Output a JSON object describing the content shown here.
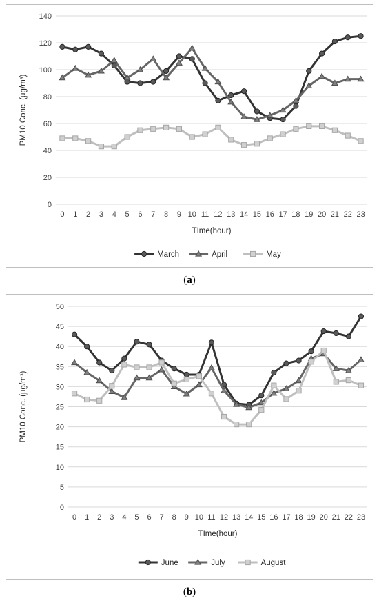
{
  "captions": {
    "a": "a",
    "b": "b"
  },
  "chart_data": [
    {
      "type": "line",
      "ylabel": "PM10 Conc. (μg/m³)",
      "xlabel": "TIme(hour)",
      "ylim": [
        0,
        140
      ],
      "ytick_step": 20,
      "categories": [
        "0",
        "1",
        "2",
        "3",
        "4",
        "5",
        "6",
        "7",
        "8",
        "9",
        "10",
        "11",
        "12",
        "13",
        "14",
        "15",
        "16",
        "17",
        "18",
        "19",
        "20",
        "21",
        "22",
        "23"
      ],
      "legend_position": "bottom",
      "series": [
        {
          "name": "March",
          "marker": "circle",
          "color": "#333333",
          "values": [
            117,
            115,
            117,
            112,
            103,
            91,
            90,
            91,
            99,
            110,
            108,
            90,
            77,
            81,
            84,
            69,
            64,
            63,
            73,
            99,
            112,
            121,
            124,
            125
          ]
        },
        {
          "name": "April",
          "marker": "triangle",
          "color": "#666666",
          "values": [
            94,
            101,
            96,
            99,
            107,
            94,
            100,
            108,
            94,
            105,
            116,
            101,
            91,
            76,
            65,
            63,
            66,
            70,
            77,
            88,
            95,
            90,
            93,
            93
          ]
        },
        {
          "name": "May",
          "marker": "square",
          "color": "#bfbfbf",
          "values": [
            49,
            49,
            47,
            43,
            43,
            50,
            55,
            56,
            57,
            56,
            50,
            52,
            57,
            48,
            44,
            45,
            49,
            52,
            56,
            58,
            58,
            55,
            51,
            47
          ]
        }
      ]
    },
    {
      "type": "line",
      "ylabel": "PM10 Conc. (μg/m³)",
      "xlabel": "TIme(hour)",
      "ylim": [
        0,
        50
      ],
      "ytick_step": 5,
      "categories": [
        "0",
        "1",
        "2",
        "3",
        "4",
        "5",
        "6",
        "7",
        "8",
        "9",
        "10",
        "11",
        "12",
        "13",
        "14",
        "15",
        "16",
        "17",
        "18",
        "19",
        "20",
        "21",
        "22",
        "23"
      ],
      "legend_position": "bottom",
      "series": [
        {
          "name": "June",
          "marker": "circle",
          "color": "#333333",
          "values": [
            43,
            40,
            36,
            34,
            37,
            41.2,
            40.5,
            36.5,
            34.5,
            33,
            33,
            41,
            30.5,
            25.8,
            25.5,
            27.8,
            33.5,
            35.8,
            36.5,
            38.8,
            43.8,
            43.3,
            42.5,
            47.5
          ]
        },
        {
          "name": "July",
          "marker": "triangle",
          "color": "#666666",
          "values": [
            36,
            33.5,
            31.5,
            28.8,
            27.3,
            32.2,
            32.2,
            34.2,
            30,
            28.2,
            30.5,
            34.7,
            29,
            25.6,
            24.8,
            26,
            28.4,
            29.5,
            31.5,
            37,
            38.2,
            34.5,
            34,
            36.7
          ]
        },
        {
          "name": "August",
          "marker": "square",
          "color": "#bfbfbf",
          "values": [
            28.3,
            26.8,
            26.5,
            30.2,
            35.5,
            34.8,
            34.8,
            36,
            30.8,
            31.8,
            32.6,
            28.3,
            22.5,
            20.6,
            20.6,
            24.2,
            30.3,
            26.9,
            29,
            36.2,
            39,
            31.2,
            31.6,
            30.3
          ]
        }
      ]
    }
  ]
}
